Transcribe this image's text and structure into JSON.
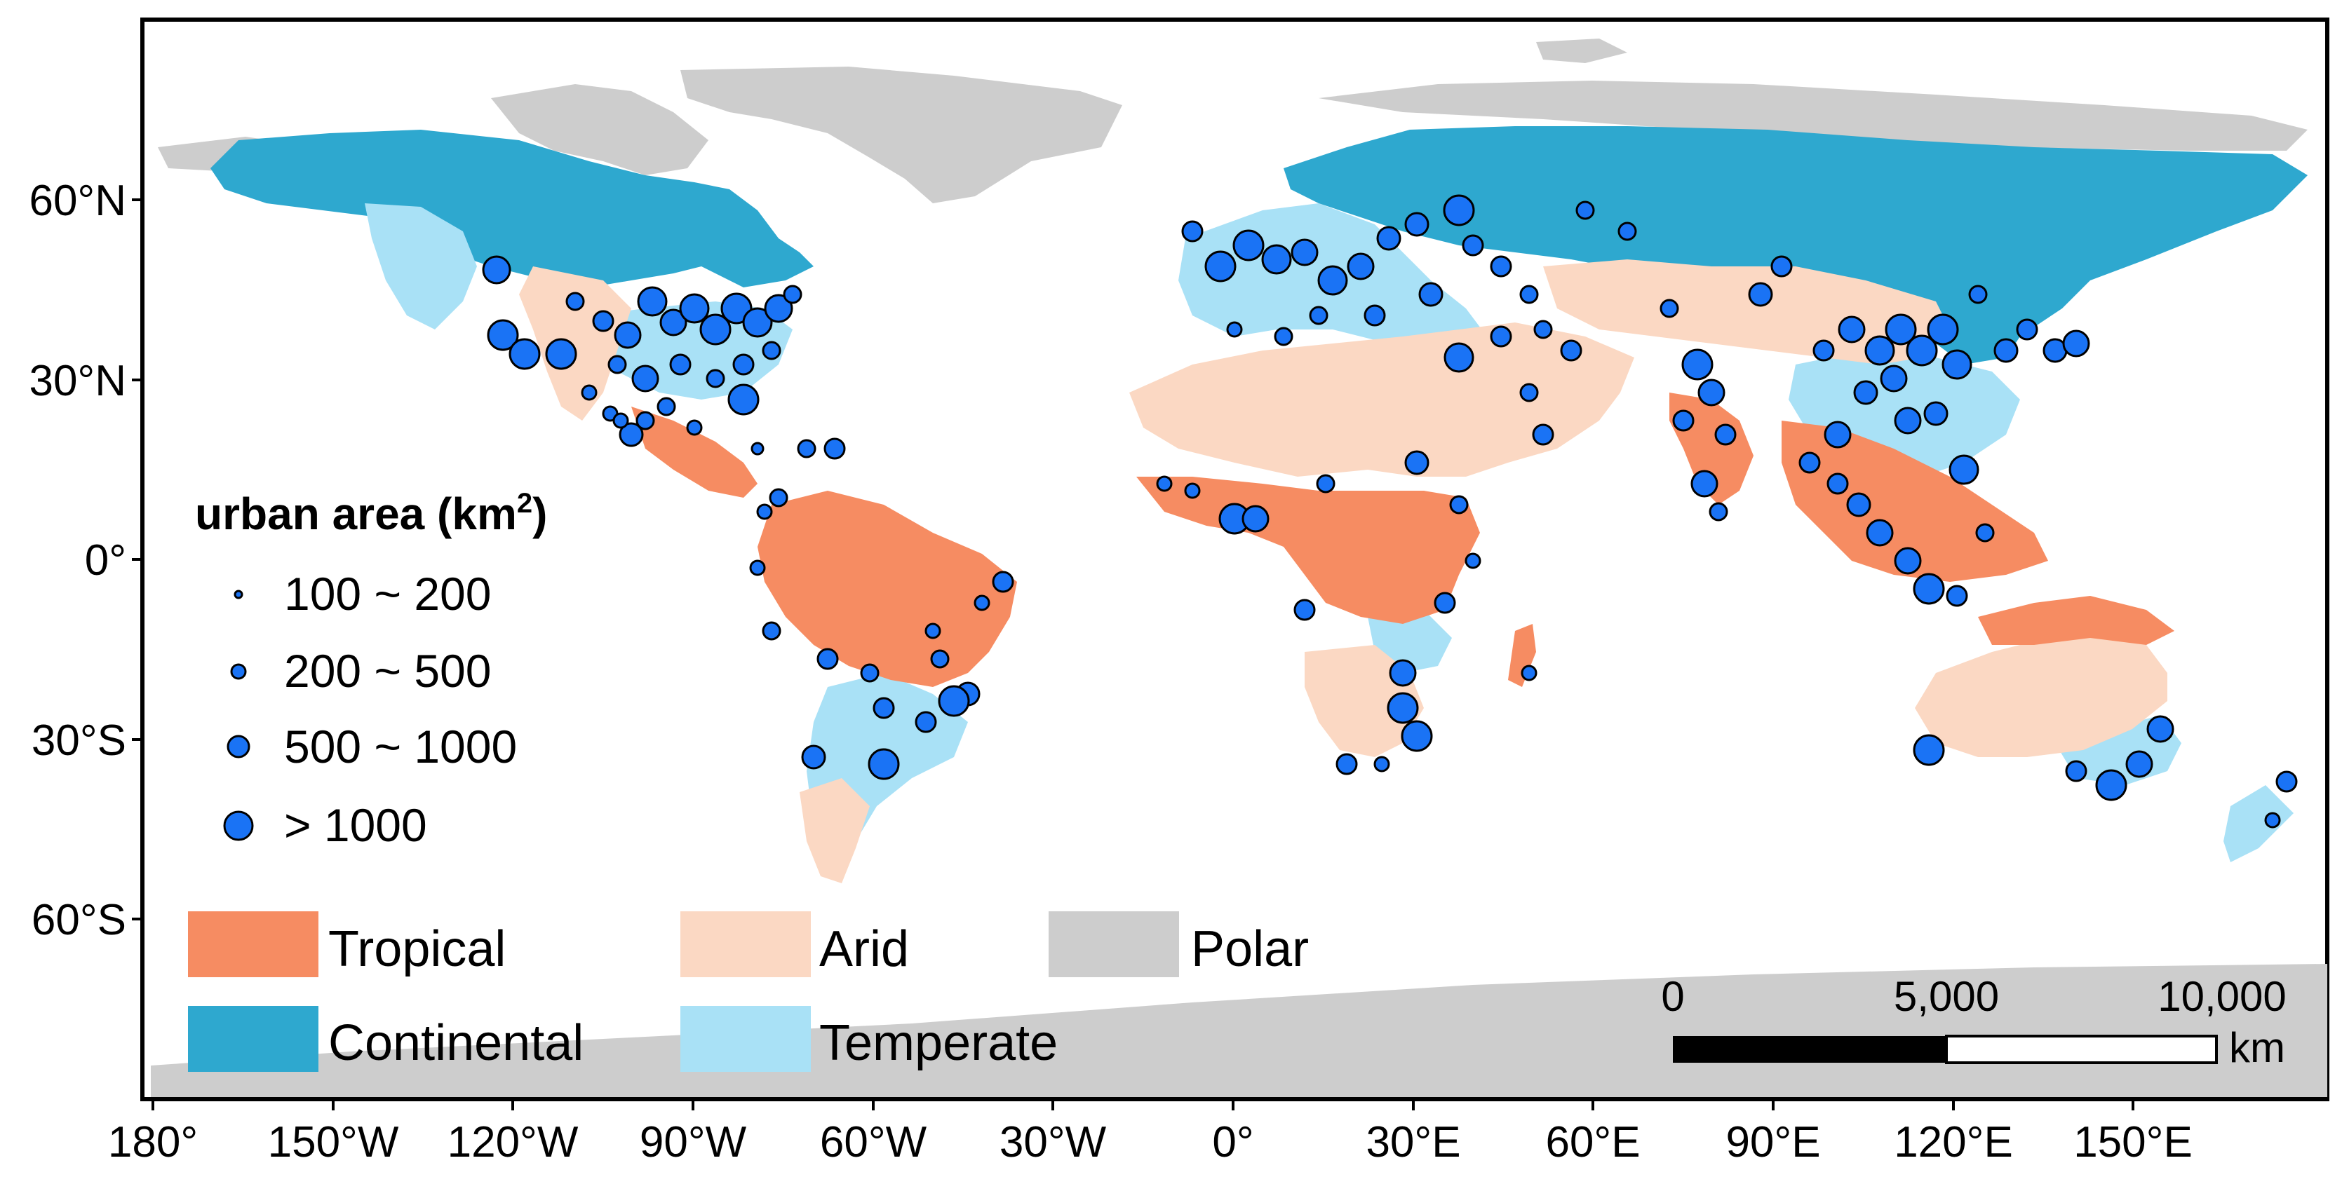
{
  "map": {
    "lat_ticks": [
      "60°N",
      "30°N",
      "0°",
      "30°S",
      "60°S"
    ],
    "lon_ticks": [
      "180°",
      "150°W",
      "120°W",
      "90°W",
      "60°W",
      "30°W",
      "0°",
      "30°E",
      "60°E",
      "90°E",
      "120°E",
      "150°E"
    ]
  },
  "urban_legend": {
    "title_main": "urban area (km",
    "title_sup": "2",
    "title_close": ")",
    "classes": [
      {
        "label": "100 ~ 200",
        "size_rank": 1
      },
      {
        "label": "200 ~ 500",
        "size_rank": 2
      },
      {
        "label": "500 ~ 1000",
        "size_rank": 3
      },
      {
        "label": "> 1000",
        "size_rank": 4
      }
    ],
    "dot_color": "#1a73f5"
  },
  "climate_legend": [
    {
      "label": "Tropical",
      "color": "#f68c62"
    },
    {
      "label": "Arid",
      "color": "#fbd8c3"
    },
    {
      "label": "Polar",
      "color": "#cdcdcd"
    },
    {
      "label": "Continental",
      "color": "#2ea8cf"
    },
    {
      "label": "Temperate",
      "color": "#a9e1f6"
    }
  ],
  "scale_bar": {
    "ticks": [
      "0",
      "5,000",
      "10,000"
    ],
    "unit": "km"
  }
}
